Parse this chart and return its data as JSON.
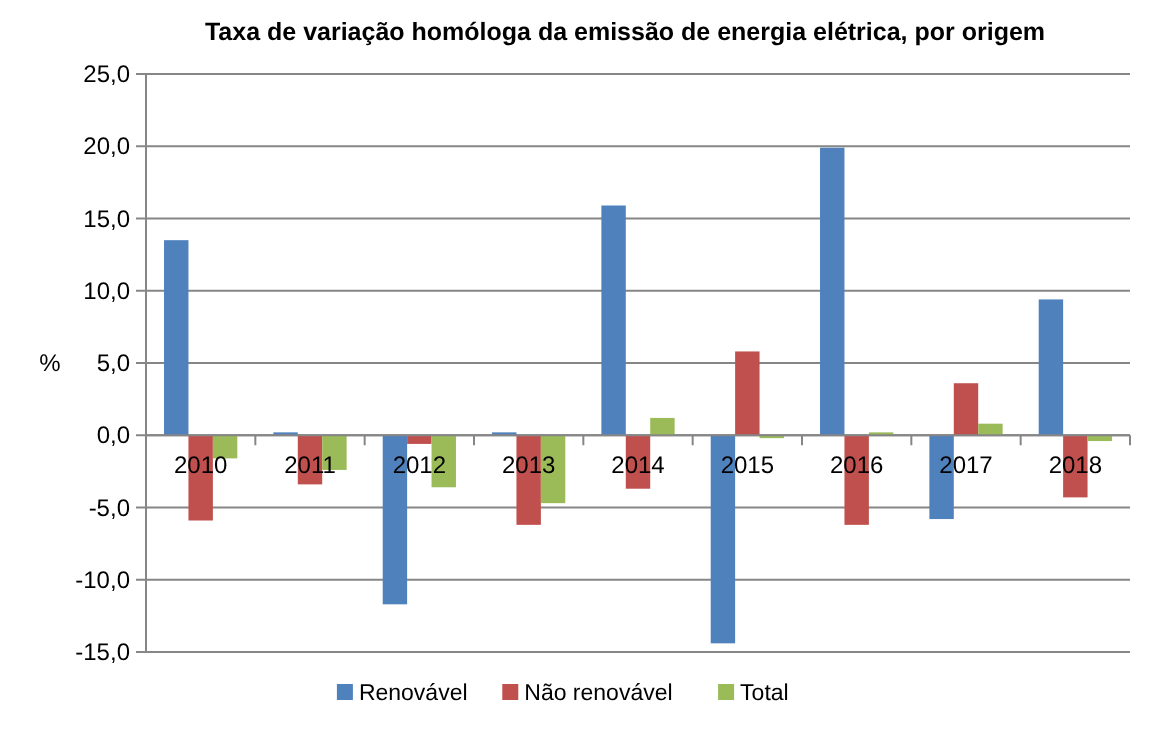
{
  "chart_data": {
    "type": "bar",
    "title": "Taxa de variação homóloga da emissão de energia elétrica, por origem",
    "ylabel": "%",
    "categories": [
      "2010",
      "2011",
      "2012",
      "2013",
      "2014",
      "2015",
      "2016",
      "2017",
      "2018"
    ],
    "series": [
      {
        "name": "Renovável",
        "color": "#4f81bd",
        "values": [
          13.5,
          0.2,
          -11.7,
          0.2,
          15.9,
          -14.4,
          19.9,
          -5.8,
          9.4
        ]
      },
      {
        "name": "Não renovável",
        "color": "#c0504d",
        "values": [
          -5.9,
          -3.4,
          -0.6,
          -6.2,
          -3.7,
          5.8,
          -6.2,
          3.6,
          -4.3
        ]
      },
      {
        "name": "Total",
        "color": "#9bbb59",
        "values": [
          -1.6,
          -2.4,
          -3.6,
          -4.7,
          1.2,
          -0.2,
          0.2,
          0.8,
          -0.4
        ]
      }
    ],
    "ylim": [
      -15,
      25
    ],
    "yticks": [
      {
        "value": -15,
        "label": "-15,0"
      },
      {
        "value": -10,
        "label": "-10,0"
      },
      {
        "value": -5,
        "label": "-5,0"
      },
      {
        "value": 0,
        "label": "0,0"
      },
      {
        "value": 5,
        "label": "5,0"
      },
      {
        "value": 10,
        "label": "10,0"
      },
      {
        "value": 15,
        "label": "15,0"
      },
      {
        "value": 20,
        "label": "20,0"
      },
      {
        "value": 25,
        "label": "25,0"
      }
    ],
    "grid": "y",
    "legend": "bottom"
  }
}
